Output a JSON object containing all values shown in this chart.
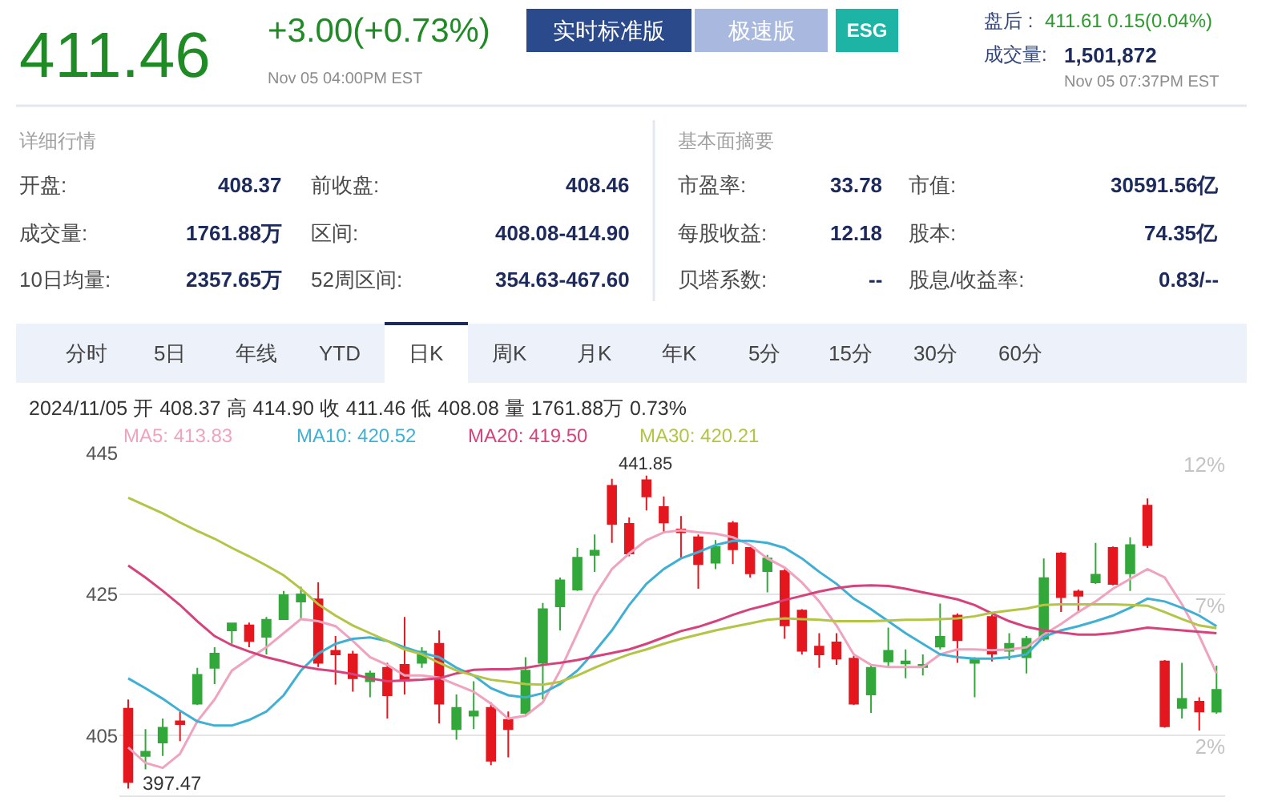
{
  "chart_data": {
    "type": "candlestick",
    "categories": [
      null,
      null,
      null,
      null,
      null,
      null,
      null,
      null,
      null,
      null,
      null,
      null,
      null,
      null,
      null,
      null,
      null,
      null,
      null,
      null,
      null,
      null,
      null,
      null,
      null,
      null,
      null,
      null,
      null,
      null,
      null,
      null,
      null,
      null,
      null,
      null,
      null,
      null,
      null,
      null,
      null,
      null,
      null,
      null,
      null,
      null,
      null,
      null,
      null,
      null,
      null,
      null,
      null,
      null,
      null,
      null,
      null,
      null,
      null,
      null,
      null,
      null,
      null,
      null
    ],
    "ohlc": [
      [
        408.8,
        410.1,
        397.47,
        398.4
      ],
      [
        402.1,
        405.9,
        400.2,
        402.7
      ],
      [
        404.0,
        407.4,
        402.1,
        406.1
      ],
      [
        407.0,
        408.4,
        404.2,
        406.6
      ],
      [
        409.5,
        414.6,
        409.3,
        413.6
      ],
      [
        414.6,
        417.5,
        412.3,
        416.6
      ],
      [
        419.9,
        421.0,
        418.0,
        420.9
      ],
      [
        420.6,
        421.0,
        417.5,
        418.4
      ],
      [
        419.0,
        421.8,
        416.5,
        421.4
      ],
      [
        421.5,
        425.5,
        421.4,
        424.9
      ],
      [
        424.0,
        426.1,
        421.4,
        425.0
      ],
      [
        424.3,
        426.7,
        414.7,
        415.3
      ],
      [
        417.0,
        419.1,
        412.2,
        416.5
      ],
      [
        416.5,
        417.0,
        411.2,
        413.1
      ],
      [
        412.7,
        414.2,
        410.4,
        413.8
      ],
      [
        414.6,
        415.3,
        407.4,
        410.7
      ],
      [
        415.0,
        421.8,
        410.8,
        412.9
      ],
      [
        415.3,
        417.5,
        414.6,
        416.9
      ],
      [
        418.0,
        419.9,
        406.7,
        409.5
      ],
      [
        405.9,
        410.8,
        404.4,
        408.9
      ],
      [
        407.8,
        412.7,
        405.9,
        408.4
      ],
      [
        408.9,
        409.7,
        400.8,
        401.4
      ],
      [
        407.2,
        408.4,
        401.9,
        405.9
      ],
      [
        408.2,
        416.1,
        408.0,
        414.2
      ],
      [
        415.3,
        423.8,
        410.1,
        422.9
      ],
      [
        423.3,
        427.4,
        419.9,
        427.0
      ],
      [
        425.7,
        431.6,
        425.5,
        430.2
      ],
      [
        430.6,
        433.5,
        428.2,
        431.2
      ],
      [
        440.4,
        441.4,
        432.3,
        435.0
      ],
      [
        435.0,
        435.9,
        430.4,
        430.8
      ],
      [
        441.2,
        441.85,
        436.9,
        438.9
      ],
      [
        437.4,
        438.9,
        433.8,
        435.2
      ],
      [
        434.2,
        436.1,
        430.1,
        433.8
      ],
      [
        433.1,
        433.5,
        425.8,
        429.3
      ],
      [
        429.5,
        432.7,
        428.6,
        431.7
      ],
      [
        435.1,
        435.4,
        429.3,
        431.4
      ],
      [
        431.6,
        431.7,
        427.4,
        428.0
      ],
      [
        428.3,
        430.6,
        425.3,
        430.1
      ],
      [
        428.3,
        428.6,
        418.7,
        420.6
      ],
      [
        422.7,
        422.9,
        416.5,
        417.0
      ],
      [
        417.6,
        419.5,
        414.6,
        416.5
      ],
      [
        418.2,
        419.5,
        415.0,
        415.9
      ],
      [
        415.9,
        416.3,
        409.3,
        409.5
      ],
      [
        410.8,
        415.0,
        408.2,
        414.6
      ],
      [
        415.5,
        420.3,
        414.6,
        417.0
      ],
      [
        415.2,
        417.2,
        413.1,
        415.5
      ],
      [
        414.7,
        416.5,
        413.5,
        415.0
      ],
      [
        417.6,
        423.7,
        417.2,
        419.0
      ],
      [
        422.0,
        422.3,
        415.3,
        418.5
      ],
      [
        415.3,
        416.1,
        410.4,
        415.8
      ],
      [
        421.8,
        422.1,
        415.5,
        416.6
      ],
      [
        417.0,
        419.5,
        415.7,
        418.0
      ],
      [
        416.1,
        419.1,
        413.8,
        418.7
      ],
      [
        418.7,
        430.1,
        418.4,
        427.3
      ],
      [
        430.8,
        431.0,
        422.5,
        424.6
      ],
      [
        425.4,
        425.7,
        422.5,
        424.8
      ],
      [
        426.7,
        432.3,
        426.5,
        427.8
      ],
      [
        431.6,
        431.8,
        426.3,
        426.5
      ],
      [
        428.0,
        433.1,
        425.5,
        432.0
      ],
      [
        437.6,
        438.6,
        431.6,
        432.0
      ],
      [
        415.5,
        415.7,
        406.1,
        406.3
      ],
      [
        408.9,
        415.3,
        407.4,
        410.2
      ],
      [
        409.8,
        410.4,
        405.7,
        408.4
      ],
      [
        408.37,
        414.9,
        408.08,
        411.46
      ]
    ],
    "colors": [
      "#e5171e",
      "#32a83a",
      "#32a83a",
      "#e5171e",
      "#32a83a",
      "#32a83a",
      "#32a83a",
      "#e5171e",
      "#32a83a",
      "#32a83a",
      "#32a83a",
      "#e5171e",
      "#e5171e",
      "#e5171e",
      "#32a83a",
      "#e5171e",
      "#e5171e",
      "#32a83a",
      "#e5171e",
      "#32a83a",
      "#32a83a",
      "#e5171e",
      "#e5171e",
      "#32a83a",
      "#32a83a",
      "#32a83a",
      "#32a83a",
      "#32a83a",
      "#e5171e",
      "#e5171e",
      "#e5171e",
      "#e5171e",
      "#e5171e",
      "#e5171e",
      "#32a83a",
      "#e5171e",
      "#e5171e",
      "#32a83a",
      "#e5171e",
      "#e5171e",
      "#e5171e",
      "#e5171e",
      "#e5171e",
      "#32a83a",
      "#32a83a",
      "#32a83a",
      "#32a83a",
      "#32a83a",
      "#e5171e",
      "#32a83a",
      "#e5171e",
      "#32a83a",
      "#32a83a",
      "#32a83a",
      "#e5171e",
      "#e5171e",
      "#32a83a",
      "#e5171e",
      "#32a83a",
      "#e5171e",
      "#e5171e",
      "#32a83a",
      "#e5171e",
      "#32a83a"
    ],
    "series": [
      {
        "type": "line",
        "name": "MA5: 413.83",
        "color": "#f0a3be",
        "values": [
          403.3,
          401.1,
          400.4,
          402.4,
          407.0,
          410.1,
          414.2,
          415.9,
          417.5,
          419.5,
          421.5,
          421.2,
          420.5,
          418.4,
          416.1,
          415.0,
          413.5,
          413.5,
          413.2,
          412.2,
          411.2,
          409.5,
          407.4,
          407.8,
          409.7,
          414.2,
          419.5,
          424.8,
          428.6,
          430.8,
          432.7,
          433.8,
          434.1,
          433.8,
          433.6,
          433.1,
          432.0,
          430.1,
          428.8,
          426.7,
          424.0,
          420.6,
          416.5,
          415.0,
          414.7,
          414.7,
          414.7,
          416.5,
          417.2,
          417.2,
          417.1,
          417.2,
          417.5,
          419.3,
          420.8,
          422.5,
          424.0,
          425.8,
          427.2,
          428.6,
          427.4,
          423.6,
          419.1,
          413.8
        ]
      },
      {
        "type": "line",
        "name": "MA10: 420.52",
        "color": "#3fb0d4",
        "values": [
          413.1,
          411.7,
          410.2,
          408.5,
          407.0,
          406.4,
          406.4,
          407.2,
          408.4,
          410.7,
          414.2,
          416.6,
          418.0,
          418.7,
          418.9,
          418.4,
          417.5,
          416.7,
          416.1,
          414.6,
          413.5,
          411.7,
          410.7,
          410.4,
          411.0,
          412.3,
          414.2,
          416.9,
          419.9,
          423.5,
          426.5,
          428.6,
          430.1,
          431.0,
          432.0,
          432.6,
          432.6,
          432.3,
          431.6,
          430.1,
          428.2,
          426.5,
          424.4,
          422.9,
          421.2,
          419.5,
          418.0,
          416.5,
          416.1,
          415.9,
          415.9,
          416.1,
          416.5,
          419.0,
          419.9,
          420.5,
          421.2,
          422.0,
          423.1,
          424.4,
          424.0,
          423.1,
          422.0,
          420.5
        ]
      },
      {
        "type": "line",
        "name": "MA20: 419.50",
        "color": "#d6437c",
        "values": [
          429.1,
          427.4,
          425.5,
          423.5,
          421.2,
          419.1,
          417.8,
          416.9,
          416.1,
          415.5,
          414.8,
          414.4,
          414.1,
          413.7,
          413.1,
          412.7,
          412.8,
          412.9,
          413.1,
          413.8,
          414.3,
          414.4,
          414.4,
          414.6,
          415.0,
          415.3,
          415.7,
          416.2,
          416.7,
          417.2,
          418.0,
          418.9,
          419.8,
          420.4,
          421.2,
          422.1,
          422.9,
          423.5,
          424.2,
          424.8,
          425.4,
          425.9,
          426.2,
          426.3,
          426.2,
          425.8,
          425.3,
          424.8,
          424.3,
          423.5,
          422.3,
          421.2,
          420.4,
          419.9,
          419.6,
          419.3,
          419.3,
          419.5,
          419.9,
          420.3,
          420.1,
          419.9,
          419.7,
          419.5
        ]
      },
      {
        "type": "line",
        "name": "MA30: 420.21",
        "color": "#b4c445",
        "values": [
          438.7,
          437.6,
          436.5,
          435.2,
          434.0,
          432.9,
          431.6,
          430.4,
          429.1,
          427.7,
          425.8,
          423.6,
          422.0,
          420.6,
          419.5,
          418.4,
          417.2,
          416.5,
          415.3,
          414.2,
          413.5,
          412.9,
          412.6,
          412.3,
          412.2,
          412.6,
          413.5,
          414.6,
          415.6,
          416.5,
          417.2,
          418.0,
          418.7,
          419.3,
          419.9,
          420.4,
          420.9,
          421.4,
          421.6,
          421.5,
          421.4,
          421.2,
          421.2,
          421.2,
          421.3,
          421.4,
          421.4,
          421.5,
          421.6,
          421.9,
          422.4,
          422.7,
          423.0,
          423.5,
          423.6,
          423.6,
          423.6,
          423.6,
          423.5,
          423.4,
          422.5,
          421.5,
          420.6,
          420.2
        ]
      }
    ],
    "ylim": [
      396.5,
      445
    ],
    "yticks": [
      405,
      425,
      445
    ],
    "y2lim": [
      -0.125,
      12
    ],
    "y2ticks": [
      {
        "value": 12,
        "label": "12%"
      },
      {
        "value": 7,
        "label": "7%"
      },
      {
        "value": 2,
        "label": "2%"
      }
    ],
    "grid": "y",
    "annotations": [
      "411.46",
      "+3.00(+0.73%)",
      "Nov 05 04:00PM EST",
      "实时标准版",
      "极速版",
      "ESG",
      "盘后 :",
      "411.61 0.15(0.04%)",
      "成交量:",
      "1,501,872",
      "Nov 05 07:37PM EST",
      "详细行情",
      "开盘:",
      "408.37",
      "前收盘:",
      "408.46",
      "成交量:",
      "1761.88万",
      "区间:",
      "408.08-414.90",
      "10日均量:",
      "2357.65万",
      "52周区间:",
      "354.63-467.60",
      "基本面摘要",
      "市盈率:",
      "33.78",
      "市值:",
      "30591.56亿",
      "每股收益:",
      "12.18",
      "股本:",
      "74.35亿",
      "贝塔系数:",
      "--",
      "股息/收益率:",
      "0.83/--",
      "分时",
      "5日",
      "年线",
      "YTD",
      "日K",
      "周K",
      "月K",
      "年K",
      "5分",
      "15分",
      "30分",
      "60分",
      "2024/11/05 开 408.37 高 414.90 收 411.46 低 408.08 量 1761.88万 0.73%",
      {
        "text": "441.85",
        "y": 441.85
      },
      "397.47"
    ]
  }
}
